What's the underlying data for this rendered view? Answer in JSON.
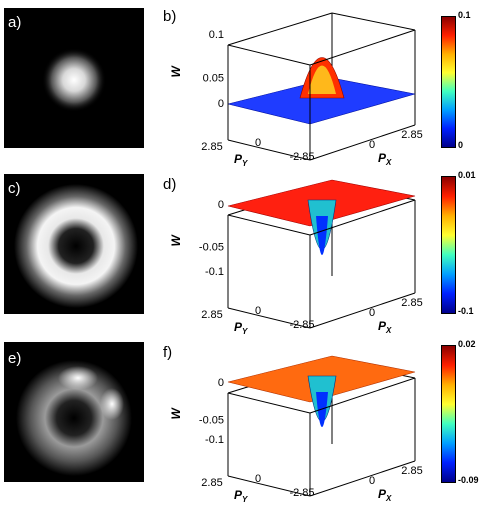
{
  "panels": [
    {
      "id": "a",
      "label": "a)",
      "kind": "image",
      "pattern": "spot"
    },
    {
      "id": "b",
      "label": "b)",
      "kind": "surface",
      "z_ticks": [
        "0.1",
        "0.05",
        "0"
      ],
      "z_label": "W",
      "py_ticks": [
        "2.85",
        "0",
        "-2.85"
      ],
      "px_ticks": [
        "0",
        "2.85"
      ],
      "py_label": "P",
      "py_sub": "Y",
      "px_label": "P",
      "px_sub": "X",
      "colorbar": {
        "max": "0.1",
        "min": "0"
      }
    },
    {
      "id": "c",
      "label": "c)",
      "kind": "image",
      "pattern": "ring"
    },
    {
      "id": "d",
      "label": "d)",
      "kind": "surface",
      "z_ticks": [
        "0",
        "-0.05",
        "-0.1"
      ],
      "z_label": "W",
      "py_ticks": [
        "2.85",
        "0",
        "-2.85"
      ],
      "px_ticks": [
        "0",
        "2.85"
      ],
      "py_label": "P",
      "py_sub": "Y",
      "px_label": "P",
      "px_sub": "X",
      "colorbar": {
        "max": "0.01",
        "min": "-0.1"
      }
    },
    {
      "id": "e",
      "label": "e)",
      "kind": "image",
      "pattern": "broken-ring"
    },
    {
      "id": "f",
      "label": "f)",
      "kind": "surface",
      "z_ticks": [
        "0",
        "-0.05",
        "-0.1"
      ],
      "z_label": "W",
      "py_ticks": [
        "2.85",
        "0",
        "-2.85"
      ],
      "px_ticks": [
        "0",
        "2.85"
      ],
      "py_label": "P",
      "py_sub": "Y",
      "px_label": "P",
      "px_sub": "X",
      "colorbar": {
        "max": "0.02",
        "min": "-0.09"
      }
    }
  ]
}
